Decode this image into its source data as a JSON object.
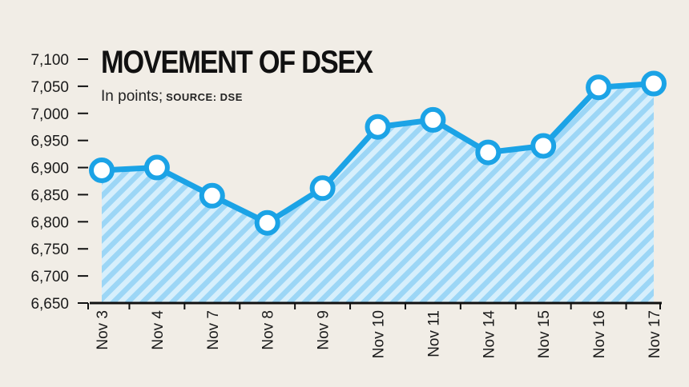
{
  "chart_data": {
    "type": "area",
    "title": "MOVEMENT OF DSEX",
    "subtitle": "In points;",
    "source": "SOURCE: DSE",
    "categories": [
      "Nov 3",
      "Nov 4",
      "Nov 7",
      "Nov 8",
      "Nov 9",
      "Nov 10",
      "Nov 11",
      "Nov 14",
      "Nov 15",
      "Nov 16",
      "Nov 17"
    ],
    "values": [
      6895,
      6900,
      6848,
      6798,
      6862,
      6975,
      6988,
      6928,
      6940,
      7048,
      7055
    ],
    "yticks": [
      6650,
      6700,
      6750,
      6800,
      6850,
      6900,
      6950,
      7000,
      7050,
      7100
    ],
    "ytick_labels": [
      "6,650",
      "6,700",
      "6,750",
      "6,800",
      "6,850",
      "6,900",
      "6,950",
      "7,000",
      "7,050",
      "7,100"
    ],
    "ylim": [
      6650,
      7100
    ],
    "grid": false,
    "colors": {
      "line": "#1ba3e6",
      "fill_stripe_a": "#9cd6f6",
      "fill_stripe_b": "#d6effc",
      "marker_fill": "#ffffff",
      "axis": "#111111",
      "background": "#f1ede6"
    }
  }
}
